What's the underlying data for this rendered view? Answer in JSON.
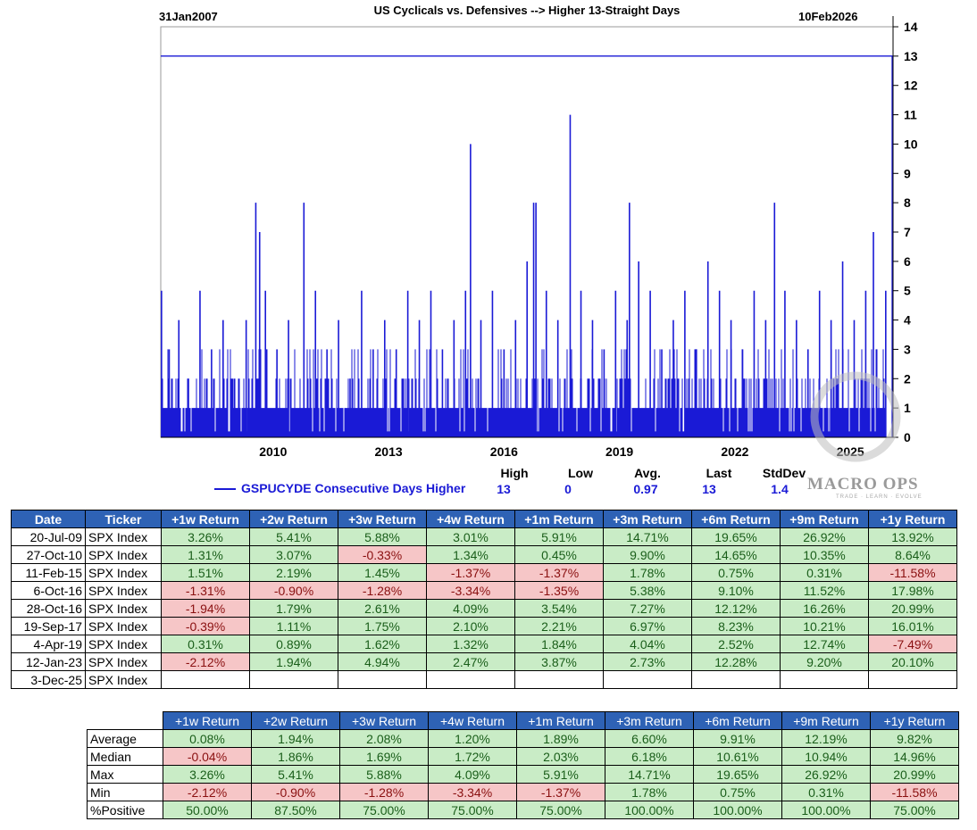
{
  "chart_data": {
    "type": "bar",
    "title": "US Cyclicals vs. Defensives --> Higher 13-Straight Days",
    "start_label": "31Jan2007",
    "end_label": "10Feb2026",
    "x_tick_labels": [
      "2010",
      "2013",
      "2016",
      "2019",
      "2022",
      "2025"
    ],
    "y_tick_labels": [
      "0",
      "1",
      "2",
      "3",
      "4",
      "5",
      "6",
      "7",
      "8",
      "9",
      "10",
      "11",
      "12",
      "13",
      "14"
    ],
    "ylim": [
      0,
      14
    ],
    "xlim": [
      2007.08,
      2026.11
    ],
    "y_axis_position": "right",
    "reference_line": 13,
    "series": [
      {
        "name": "GSPUCYDE Consecutive Days Higher",
        "color": "#1a1ad6",
        "x": [
          2007.1,
          2007.3,
          2007.55,
          2007.8,
          2008.1,
          2008.4,
          2008.7,
          2009.0,
          2009.3,
          2009.55,
          2009.65,
          2009.8,
          2010.1,
          2010.4,
          2010.8,
          2011.1,
          2011.4,
          2011.7,
          2012.0,
          2012.3,
          2012.6,
          2012.9,
          2013.2,
          2013.5,
          2013.8,
          2014.1,
          2014.4,
          2014.7,
          2015.0,
          2015.13,
          2015.4,
          2015.7,
          2016.0,
          2016.3,
          2016.6,
          2016.77,
          2016.83,
          2017.1,
          2017.4,
          2017.72,
          2018.0,
          2018.3,
          2018.6,
          2018.9,
          2019.2,
          2019.26,
          2019.5,
          2019.8,
          2020.1,
          2020.4,
          2020.7,
          2021.0,
          2021.3,
          2021.6,
          2021.9,
          2022.2,
          2022.5,
          2022.8,
          2023.03,
          2023.3,
          2023.6,
          2023.9,
          2024.2,
          2024.5,
          2024.8,
          2025.1,
          2025.4,
          2025.6,
          2025.92,
          2026.09
        ],
        "values": [
          5,
          3,
          4,
          2,
          5,
          3,
          4,
          2,
          4,
          8,
          7,
          5,
          3,
          4,
          8,
          5,
          3,
          4,
          2,
          5,
          3,
          4,
          3,
          5,
          4,
          5,
          3,
          4,
          5,
          10,
          4,
          5,
          3,
          4,
          6,
          8,
          8,
          5,
          4,
          11,
          5,
          4,
          3,
          5,
          4,
          8,
          6,
          5,
          3,
          4,
          5,
          3,
          6,
          5,
          4,
          3,
          5,
          4,
          8,
          5,
          4,
          3,
          5,
          4,
          6,
          4,
          5,
          7,
          5,
          13
        ]
      }
    ],
    "stats": {
      "headers": [
        "High",
        "Low",
        "Avg.",
        "Last",
        "StdDev"
      ],
      "values": [
        "13",
        "0",
        "0.97",
        "13",
        "1.4"
      ]
    }
  },
  "watermark": {
    "text": "MACRO OPS",
    "tagline": "TRADE · LEARN · EVOLVE"
  },
  "events_table": {
    "headers": [
      "Date",
      "Ticker",
      "+1w Return",
      "+2w Return",
      "+3w Return",
      "+4w Return",
      "+1m Return",
      "+3m Return",
      "+6m Return",
      "+9m Return",
      "+1y Return"
    ],
    "rows": [
      {
        "date": "20-Jul-09",
        "ticker": "SPX Index",
        "values": [
          "3.26%",
          "5.41%",
          "5.88%",
          "3.01%",
          "5.91%",
          "14.71%",
          "19.65%",
          "26.92%",
          "13.92%"
        ]
      },
      {
        "date": "27-Oct-10",
        "ticker": "SPX Index",
        "values": [
          "1.31%",
          "3.07%",
          "-0.33%",
          "1.34%",
          "0.45%",
          "9.90%",
          "14.65%",
          "10.35%",
          "8.64%"
        ]
      },
      {
        "date": "11-Feb-15",
        "ticker": "SPX Index",
        "values": [
          "1.51%",
          "2.19%",
          "1.45%",
          "-1.37%",
          "-1.37%",
          "1.78%",
          "0.75%",
          "0.31%",
          "-11.58%"
        ]
      },
      {
        "date": "6-Oct-16",
        "ticker": "SPX Index",
        "values": [
          "-1.31%",
          "-0.90%",
          "-1.28%",
          "-3.34%",
          "-1.35%",
          "5.38%",
          "9.10%",
          "11.52%",
          "17.98%"
        ]
      },
      {
        "date": "28-Oct-16",
        "ticker": "SPX Index",
        "values": [
          "-1.94%",
          "1.79%",
          "2.61%",
          "4.09%",
          "3.54%",
          "7.27%",
          "12.12%",
          "16.26%",
          "20.99%"
        ]
      },
      {
        "date": "19-Sep-17",
        "ticker": "SPX Index",
        "values": [
          "-0.39%",
          "1.11%",
          "1.75%",
          "2.10%",
          "2.21%",
          "6.97%",
          "8.23%",
          "10.21%",
          "16.01%"
        ]
      },
      {
        "date": "4-Apr-19",
        "ticker": "SPX Index",
        "values": [
          "0.31%",
          "0.89%",
          "1.62%",
          "1.32%",
          "1.84%",
          "4.04%",
          "2.52%",
          "12.74%",
          "-7.49%"
        ]
      },
      {
        "date": "12-Jan-23",
        "ticker": "SPX Index",
        "values": [
          "-2.12%",
          "1.94%",
          "4.94%",
          "2.47%",
          "3.87%",
          "2.73%",
          "12.28%",
          "9.20%",
          "20.10%"
        ]
      },
      {
        "date": "3-Dec-25",
        "ticker": "SPX Index",
        "values": [
          "",
          "",
          "",
          "",
          "",
          "",
          "",
          "",
          ""
        ]
      }
    ]
  },
  "summary_table": {
    "headers": [
      "+1w Return",
      "+2w Return",
      "+3w Return",
      "+4w Return",
      "+1m Return",
      "+3m Return",
      "+6m Return",
      "+9m Return",
      "+1y Return"
    ],
    "rows": [
      {
        "label": "Average",
        "values": [
          "0.08%",
          "1.94%",
          "2.08%",
          "1.20%",
          "1.89%",
          "6.60%",
          "9.91%",
          "12.19%",
          "9.82%"
        ]
      },
      {
        "label": "Median",
        "values": [
          "-0.04%",
          "1.86%",
          "1.69%",
          "1.72%",
          "2.03%",
          "6.18%",
          "10.61%",
          "10.94%",
          "14.96%"
        ]
      },
      {
        "label": "Max",
        "values": [
          "3.26%",
          "5.41%",
          "5.88%",
          "4.09%",
          "5.91%",
          "14.71%",
          "19.65%",
          "26.92%",
          "20.99%"
        ]
      },
      {
        "label": "Min",
        "values": [
          "-2.12%",
          "-0.90%",
          "-1.28%",
          "-3.34%",
          "-1.37%",
          "1.78%",
          "0.75%",
          "0.31%",
          "-11.58%"
        ]
      },
      {
        "label": "%Positive",
        "values": [
          "50.00%",
          "87.50%",
          "75.00%",
          "75.00%",
          "75.00%",
          "100.00%",
          "100.00%",
          "100.00%",
          "75.00%"
        ]
      }
    ]
  }
}
